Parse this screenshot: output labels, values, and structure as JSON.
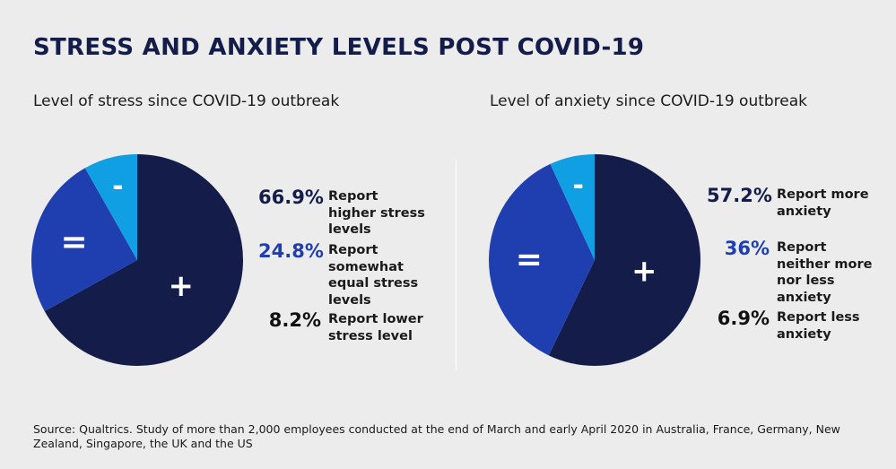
{
  "title": "STRESS AND ANXIETY LEVELS POST COVID-19",
  "colors": {
    "dark_navy": "#141c4a",
    "royal_blue": "#1f3fb0",
    "sky_blue": "#0f9fe2",
    "pct_dark": "#141c4a",
    "pct_blue": "#1f3fb0",
    "pct_black": "#111111"
  },
  "chart_data": [
    {
      "type": "pie",
      "title": "Level of stress since COVID-19 outbreak",
      "slices": [
        {
          "symbol": "+",
          "value": 66.9,
          "label": "66.9%",
          "description": "Report higher stress levels",
          "color": "#141c4a",
          "pct_color": "#141c4a"
        },
        {
          "symbol": "=",
          "value": 24.8,
          "label": "24.8%",
          "description": "Report somewhat equal stress levels",
          "color": "#1f3fb0",
          "pct_color": "#1f3fb0"
        },
        {
          "symbol": "-",
          "value": 8.2,
          "label": "8.2%",
          "description": "Report lower stress level",
          "color": "#0f9fe2",
          "pct_color": "#111111"
        }
      ]
    },
    {
      "type": "pie",
      "title": "Level of anxiety since COVID-19 outbreak",
      "slices": [
        {
          "symbol": "+",
          "value": 57.2,
          "label": "57.2%",
          "description": "Report more anxiety",
          "color": "#141c4a",
          "pct_color": "#141c4a"
        },
        {
          "symbol": "=",
          "value": 36,
          "label": "36%",
          "description": "Report neither more nor less anxiety",
          "color": "#1f3fb0",
          "pct_color": "#1f3fb0"
        },
        {
          "symbol": "-",
          "value": 6.9,
          "label": "6.9%",
          "description": "Report less anxiety",
          "color": "#0f9fe2",
          "pct_color": "#111111"
        }
      ]
    }
  ],
  "source": "Source: Qualtrics. Study of more than 2,000 employees conducted at the end of March and early April 2020 in Australia, France, Germany, New Zealand, Singapore, the UK and the US"
}
